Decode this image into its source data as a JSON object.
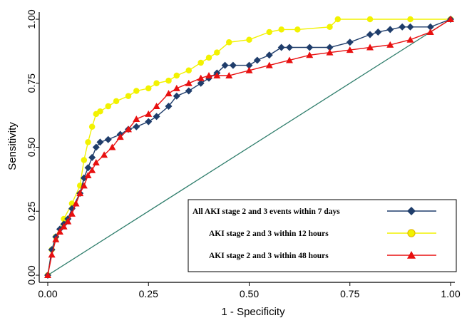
{
  "chart_data": {
    "type": "line",
    "xlabel": "1 - Specificity",
    "ylabel": "Sensitivity",
    "xlim": [
      0,
      1
    ],
    "ylim": [
      0,
      1
    ],
    "x_ticks": [
      "0.00",
      "0.25",
      "0.50",
      "0.75",
      "1.00"
    ],
    "y_ticks": [
      "0.00",
      "0.25",
      "0.50",
      "0.75",
      "1.00"
    ],
    "grid": false,
    "legend_position": "bottom-right",
    "reference_line": {
      "x": [
        0,
        1
      ],
      "y": [
        0,
        1
      ],
      "color": "#2e7d6b"
    },
    "series": [
      {
        "name": "All AKI stage 2 and 3 events within 7 days",
        "color": "#1f3d6b",
        "marker": "diamond",
        "x": [
          0,
          0.01,
          0.02,
          0.03,
          0.04,
          0.05,
          0.06,
          0.08,
          0.09,
          0.1,
          0.11,
          0.12,
          0.13,
          0.15,
          0.18,
          0.2,
          0.22,
          0.25,
          0.27,
          0.3,
          0.32,
          0.35,
          0.38,
          0.4,
          0.42,
          0.44,
          0.46,
          0.5,
          0.52,
          0.55,
          0.58,
          0.6,
          0.65,
          0.7,
          0.75,
          0.8,
          0.82,
          0.85,
          0.88,
          0.9,
          0.95,
          1.0
        ],
        "y": [
          0,
          0.1,
          0.15,
          0.18,
          0.2,
          0.22,
          0.26,
          0.32,
          0.38,
          0.42,
          0.46,
          0.5,
          0.52,
          0.53,
          0.55,
          0.57,
          0.58,
          0.6,
          0.62,
          0.66,
          0.7,
          0.72,
          0.75,
          0.77,
          0.79,
          0.82,
          0.82,
          0.82,
          0.84,
          0.86,
          0.89,
          0.89,
          0.89,
          0.89,
          0.91,
          0.94,
          0.95,
          0.96,
          0.97,
          0.97,
          0.97,
          1.0
        ]
      },
      {
        "name": "AKI  stage 2 and 3 within 12 hours",
        "color": "#f2f200",
        "marker": "circle",
        "x": [
          0,
          0.01,
          0.02,
          0.04,
          0.06,
          0.08,
          0.09,
          0.1,
          0.11,
          0.12,
          0.13,
          0.15,
          0.17,
          0.2,
          0.22,
          0.25,
          0.27,
          0.3,
          0.32,
          0.35,
          0.38,
          0.4,
          0.42,
          0.45,
          0.5,
          0.55,
          0.58,
          0.62,
          0.7,
          0.72,
          0.8,
          0.9,
          1.0
        ],
        "y": [
          0,
          0.1,
          0.15,
          0.22,
          0.28,
          0.35,
          0.45,
          0.52,
          0.58,
          0.63,
          0.64,
          0.66,
          0.68,
          0.7,
          0.72,
          0.73,
          0.75,
          0.76,
          0.78,
          0.8,
          0.83,
          0.85,
          0.87,
          0.91,
          0.92,
          0.95,
          0.96,
          0.96,
          0.97,
          1.0,
          1.0,
          1.0,
          1.0
        ]
      },
      {
        "name": "AKI  stage 2 and 3  within 48 hours",
        "color": "#e81010",
        "marker": "triangle",
        "x": [
          0,
          0.01,
          0.02,
          0.03,
          0.04,
          0.05,
          0.06,
          0.07,
          0.08,
          0.09,
          0.1,
          0.11,
          0.12,
          0.14,
          0.16,
          0.18,
          0.2,
          0.22,
          0.25,
          0.27,
          0.3,
          0.32,
          0.35,
          0.38,
          0.4,
          0.42,
          0.45,
          0.5,
          0.55,
          0.6,
          0.65,
          0.7,
          0.75,
          0.8,
          0.85,
          0.9,
          0.95,
          1.0
        ],
        "y": [
          0,
          0.08,
          0.14,
          0.17,
          0.19,
          0.21,
          0.24,
          0.28,
          0.32,
          0.35,
          0.39,
          0.41,
          0.44,
          0.47,
          0.5,
          0.54,
          0.57,
          0.61,
          0.63,
          0.66,
          0.71,
          0.73,
          0.75,
          0.77,
          0.78,
          0.78,
          0.78,
          0.8,
          0.82,
          0.84,
          0.86,
          0.87,
          0.88,
          0.89,
          0.9,
          0.92,
          0.95,
          1.0
        ]
      }
    ]
  }
}
